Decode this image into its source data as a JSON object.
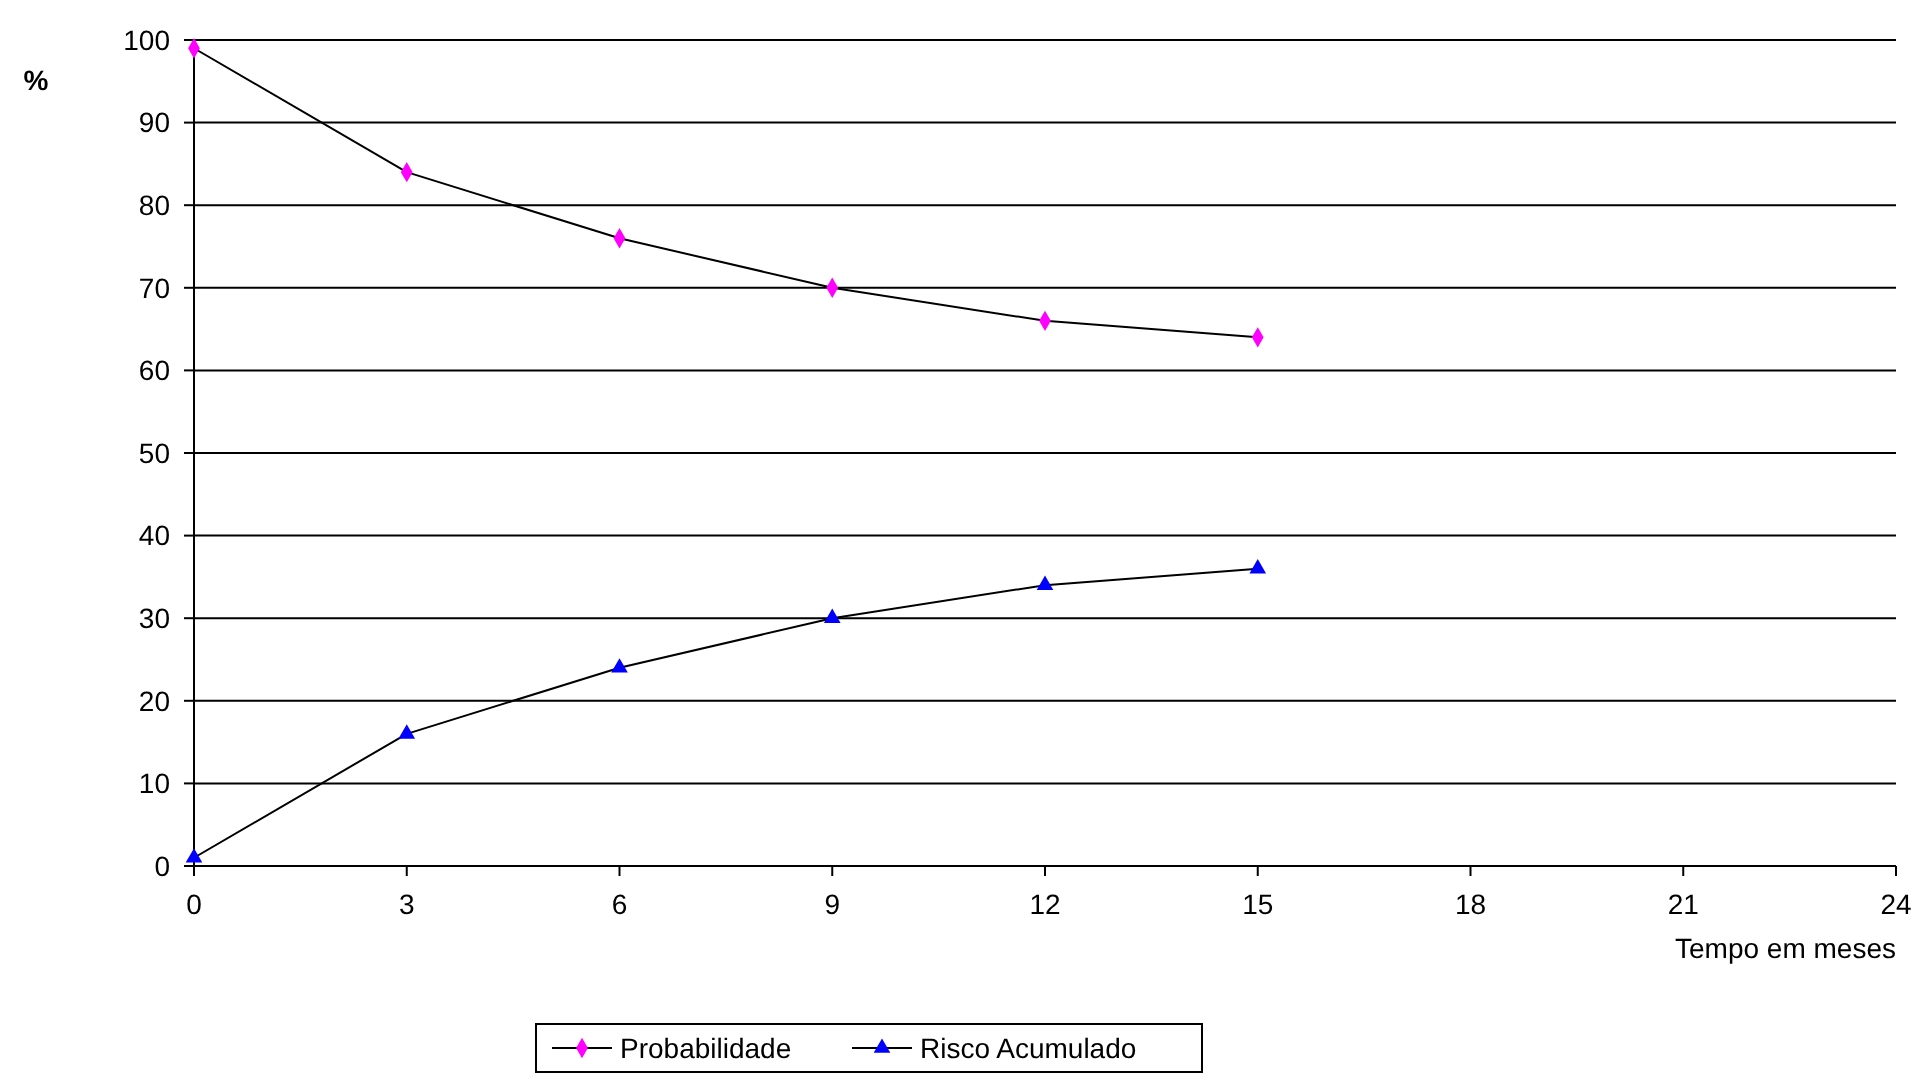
{
  "chart_data": {
    "type": "line",
    "xlabel": "Tempo em meses",
    "ylabel": "%",
    "x": [
      0,
      3,
      6,
      9,
      12,
      15
    ],
    "series": [
      {
        "name": "Probabilidade",
        "color": "#ff00ff",
        "marker": "diamond",
        "values": [
          99,
          84,
          76,
          70,
          66,
          64
        ]
      },
      {
        "name": "Risco Acumulado",
        "color": "#0000ff",
        "marker": "triangle",
        "values": [
          1,
          16,
          24,
          30,
          34,
          36
        ]
      }
    ],
    "xlim": [
      0,
      24
    ],
    "xticks": [
      0,
      3,
      6,
      9,
      12,
      15,
      18,
      21,
      24
    ],
    "ylim": [
      0,
      100
    ],
    "yticks": [
      0,
      10,
      20,
      30,
      40,
      50,
      60,
      70,
      80,
      90,
      100
    ],
    "grid": "y",
    "legend": "bottom"
  }
}
